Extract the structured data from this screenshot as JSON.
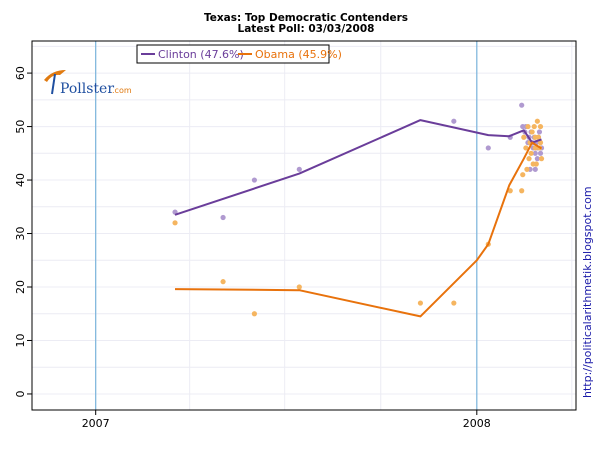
{
  "chart_data": {
    "type": "scatter",
    "title": "Texas: Top Democratic Contenders",
    "subtitle": "Latest Poll: 03/03/2008",
    "xlabel": "",
    "ylabel": "",
    "x_range": [
      "2006-11-01",
      "2008-04-05"
    ],
    "ylim": [
      -3,
      66
    ],
    "y_ticks": [
      0,
      10,
      20,
      30,
      40,
      50,
      60
    ],
    "x_ticks": [
      {
        "date": "2007-01-01",
        "label": "2007"
      },
      {
        "date": "2008-01-01",
        "label": "2008"
      }
    ],
    "grid": true,
    "legend_position": "top-left",
    "logo": {
      "name": "Pollster",
      "suffix": ".com"
    },
    "side_note": "http://politicalarithmetik.blogspot.com",
    "series": [
      {
        "name": "Clinton (47.6%)",
        "color": "#6a3d9a",
        "point_color": "#b09ad0",
        "trend": [
          {
            "x": "2007-03-18",
            "y": 33.5
          },
          {
            "x": "2007-07-15",
            "y": 41.2
          },
          {
            "x": "2007-11-08",
            "y": 51.2
          },
          {
            "x": "2008-01-12",
            "y": 48.4
          },
          {
            "x": "2008-02-01",
            "y": 48.2
          },
          {
            "x": "2008-02-15",
            "y": 49.3
          },
          {
            "x": "2008-02-23",
            "y": 47.0
          },
          {
            "x": "2008-03-03",
            "y": 47.6
          }
        ],
        "points": [
          {
            "x": "2007-03-18",
            "y": 34
          },
          {
            "x": "2007-05-03",
            "y": 33
          },
          {
            "x": "2007-06-02",
            "y": 40
          },
          {
            "x": "2007-07-15",
            "y": 42
          },
          {
            "x": "2007-12-10",
            "y": 51
          },
          {
            "x": "2008-01-12",
            "y": 46
          },
          {
            "x": "2008-02-02",
            "y": 48
          },
          {
            "x": "2008-02-13",
            "y": 54
          },
          {
            "x": "2008-02-14",
            "y": 50
          },
          {
            "x": "2008-02-16",
            "y": 49
          },
          {
            "x": "2008-02-17",
            "y": 50
          },
          {
            "x": "2008-02-19",
            "y": 47
          },
          {
            "x": "2008-02-20",
            "y": 48
          },
          {
            "x": "2008-02-22",
            "y": 49
          },
          {
            "x": "2008-02-23",
            "y": 47
          },
          {
            "x": "2008-02-24",
            "y": 46
          },
          {
            "x": "2008-02-25",
            "y": 48
          },
          {
            "x": "2008-02-26",
            "y": 45
          },
          {
            "x": "2008-02-27",
            "y": 47
          },
          {
            "x": "2008-02-28",
            "y": 46
          },
          {
            "x": "2008-02-29",
            "y": 48
          },
          {
            "x": "2008-03-01",
            "y": 49
          },
          {
            "x": "2008-03-02",
            "y": 45
          },
          {
            "x": "2008-03-03",
            "y": 46
          },
          {
            "x": "2008-02-21",
            "y": 42
          },
          {
            "x": "2008-02-26",
            "y": 42
          },
          {
            "x": "2008-02-28",
            "y": 44
          }
        ]
      },
      {
        "name": "Obama (45.9%)",
        "color": "#e8720c",
        "point_color": "#f5b560",
        "trend": [
          {
            "x": "2007-03-18",
            "y": 19.6
          },
          {
            "x": "2007-07-15",
            "y": 19.4
          },
          {
            "x": "2007-11-08",
            "y": 14.5
          },
          {
            "x": "2008-01-01",
            "y": 25.0
          },
          {
            "x": "2008-01-12",
            "y": 28.0
          },
          {
            "x": "2008-02-01",
            "y": 39.0
          },
          {
            "x": "2008-02-15",
            "y": 44.0
          },
          {
            "x": "2008-02-23",
            "y": 47.0
          },
          {
            "x": "2008-03-03",
            "y": 45.9
          }
        ],
        "points": [
          {
            "x": "2007-03-18",
            "y": 32
          },
          {
            "x": "2007-05-03",
            "y": 21
          },
          {
            "x": "2007-06-02",
            "y": 15
          },
          {
            "x": "2007-07-15",
            "y": 20
          },
          {
            "x": "2007-11-08",
            "y": 17
          },
          {
            "x": "2007-12-10",
            "y": 17
          },
          {
            "x": "2008-01-12",
            "y": 28
          },
          {
            "x": "2008-02-02",
            "y": 38
          },
          {
            "x": "2008-02-13",
            "y": 38
          },
          {
            "x": "2008-02-14",
            "y": 41
          },
          {
            "x": "2008-02-15",
            "y": 48
          },
          {
            "x": "2008-02-17",
            "y": 46
          },
          {
            "x": "2008-02-19",
            "y": 50
          },
          {
            "x": "2008-02-20",
            "y": 44
          },
          {
            "x": "2008-02-21",
            "y": 47
          },
          {
            "x": "2008-02-22",
            "y": 45
          },
          {
            "x": "2008-02-23",
            "y": 49
          },
          {
            "x": "2008-02-24",
            "y": 43
          },
          {
            "x": "2008-02-25",
            "y": 50
          },
          {
            "x": "2008-02-26",
            "y": 46
          },
          {
            "x": "2008-02-27",
            "y": 43
          },
          {
            "x": "2008-02-28",
            "y": 51
          },
          {
            "x": "2008-02-29",
            "y": 48
          },
          {
            "x": "2008-03-01",
            "y": 46
          },
          {
            "x": "2008-03-02",
            "y": 47
          },
          {
            "x": "2008-03-03",
            "y": 44
          },
          {
            "x": "2008-02-18",
            "y": 42
          },
          {
            "x": "2008-02-26",
            "y": 48
          },
          {
            "x": "2008-03-02",
            "y": 50
          }
        ]
      }
    ]
  }
}
